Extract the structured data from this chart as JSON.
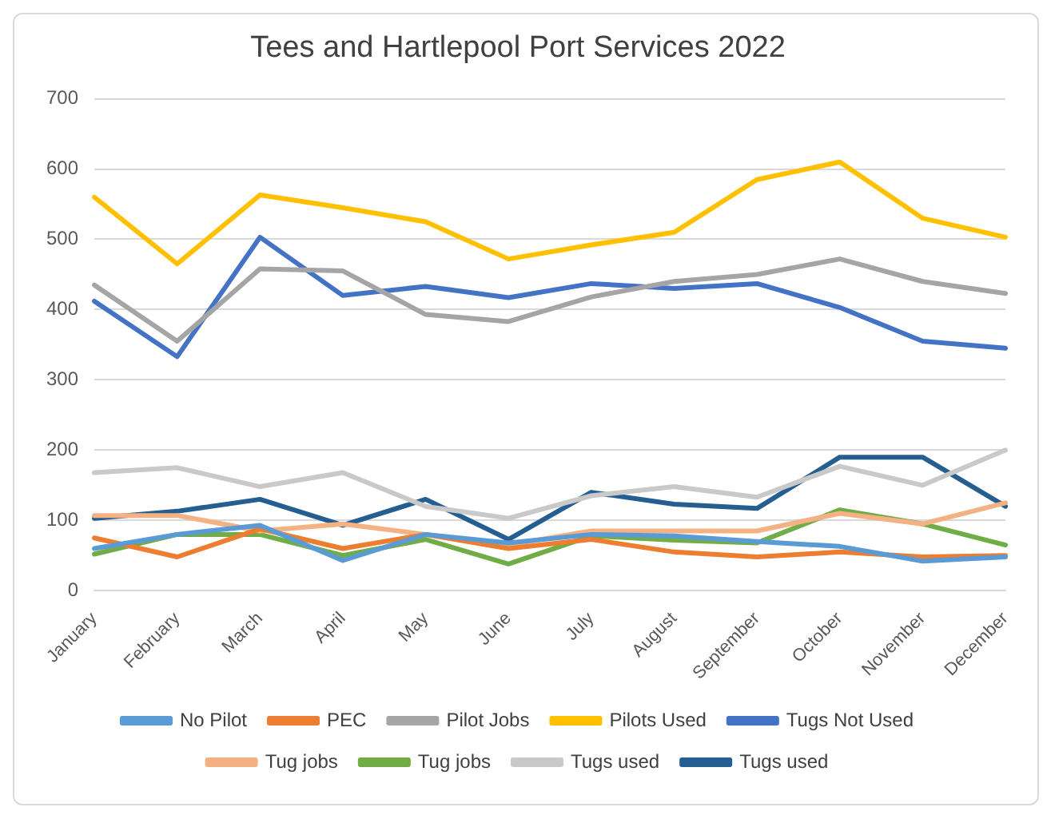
{
  "chart_data": {
    "type": "line",
    "title": "Tees and Hartlepool Port Services 2022",
    "categories": [
      "January",
      "February",
      "March",
      "April",
      "May",
      "June",
      "July",
      "August",
      "September",
      "October",
      "November",
      "December"
    ],
    "ylim": [
      0,
      700
    ],
    "yticks": [
      0,
      100,
      200,
      300,
      400,
      500,
      600,
      700
    ],
    "grid": "y",
    "legend": "bottom",
    "marker": "none",
    "line_style": "solid",
    "series": [
      {
        "name": "No Pilot",
        "color": "#5b9bd5",
        "values": [
          60,
          80,
          93,
          43,
          80,
          68,
          80,
          78,
          70,
          63,
          42,
          48
        ]
      },
      {
        "name": "PEC",
        "color": "#ed7d31",
        "values": [
          75,
          48,
          88,
          60,
          80,
          60,
          73,
          55,
          48,
          55,
          48,
          50
        ]
      },
      {
        "name": "Pilot Jobs",
        "color": "#a5a5a5",
        "values": [
          435,
          355,
          458,
          455,
          393,
          383,
          418,
          440,
          450,
          472,
          440,
          423
        ]
      },
      {
        "name": "Pilots Used",
        "color": "#ffc000",
        "values": [
          560,
          465,
          563,
          545,
          525,
          472,
          492,
          510,
          585,
          610,
          530,
          503
        ]
      },
      {
        "name": "Tugs Not Used",
        "color": "#4472c4",
        "values": [
          412,
          333,
          503,
          420,
          433,
          417,
          437,
          430,
          437,
          403,
          355,
          345
        ]
      },
      {
        "name": "Tug jobs",
        "color": "#f4b183",
        "values": [
          107,
          107,
          85,
          95,
          80,
          65,
          85,
          85,
          85,
          110,
          95,
          125
        ]
      },
      {
        "name": "Tug jobs",
        "color": "#70ad47",
        "values": [
          52,
          80,
          80,
          50,
          73,
          38,
          78,
          72,
          68,
          115,
          95,
          65
        ]
      },
      {
        "name": "Tugs used",
        "color": "#c9c9c9",
        "values": [
          168,
          175,
          148,
          168,
          120,
          103,
          135,
          148,
          133,
          177,
          150,
          200
        ]
      },
      {
        "name": "Tugs used",
        "color": "#255e91",
        "values": [
          103,
          113,
          130,
          93,
          130,
          73,
          140,
          123,
          117,
          190,
          190,
          120
        ]
      }
    ]
  }
}
